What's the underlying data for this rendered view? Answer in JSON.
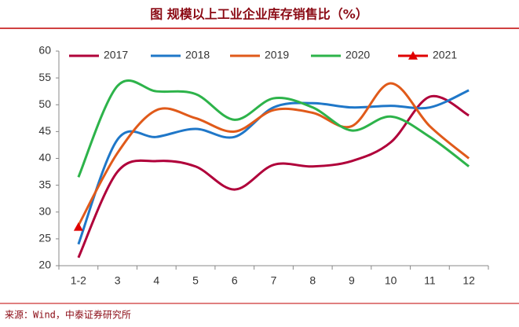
{
  "chart_data": {
    "type": "line",
    "title": "图 规模以上工业企业库存销售比（%）",
    "source": "来源：Wind，中泰证券研究所",
    "categories": [
      "1-2",
      "3",
      "4",
      "5",
      "6",
      "7",
      "8",
      "9",
      "10",
      "11",
      "12"
    ],
    "ylim": [
      20,
      60
    ],
    "yticks": [
      20,
      25,
      30,
      35,
      40,
      45,
      50,
      55,
      60
    ],
    "grid": false,
    "legend": "top",
    "series": [
      {
        "name": "2017",
        "color": "#b0003a",
        "values": [
          21.5,
          37.5,
          39.5,
          38.5,
          34.2,
          38.8,
          38.5,
          39.5,
          43,
          51.5,
          48
        ]
      },
      {
        "name": "2018",
        "color": "#1f77c8",
        "values": [
          24,
          43.5,
          44,
          45.5,
          44,
          49.5,
          50.3,
          49.5,
          49.8,
          49.5,
          52.7
        ]
      },
      {
        "name": "2019",
        "color": "#e05a1a",
        "values": [
          27.5,
          41,
          49,
          47.5,
          45,
          49,
          48.5,
          46,
          54,
          46,
          40
        ]
      },
      {
        "name": "2020",
        "color": "#2db34a",
        "values": [
          36.5,
          53.5,
          52.5,
          52,
          47.2,
          51.2,
          49.5,
          45.2,
          47.8,
          44,
          38.5
        ]
      },
      {
        "name": "2021",
        "color": "#e00000",
        "marker": "triangle",
        "values": [
          27.2,
          null,
          null,
          null,
          null,
          null,
          null,
          null,
          null,
          null,
          null
        ]
      }
    ]
  }
}
